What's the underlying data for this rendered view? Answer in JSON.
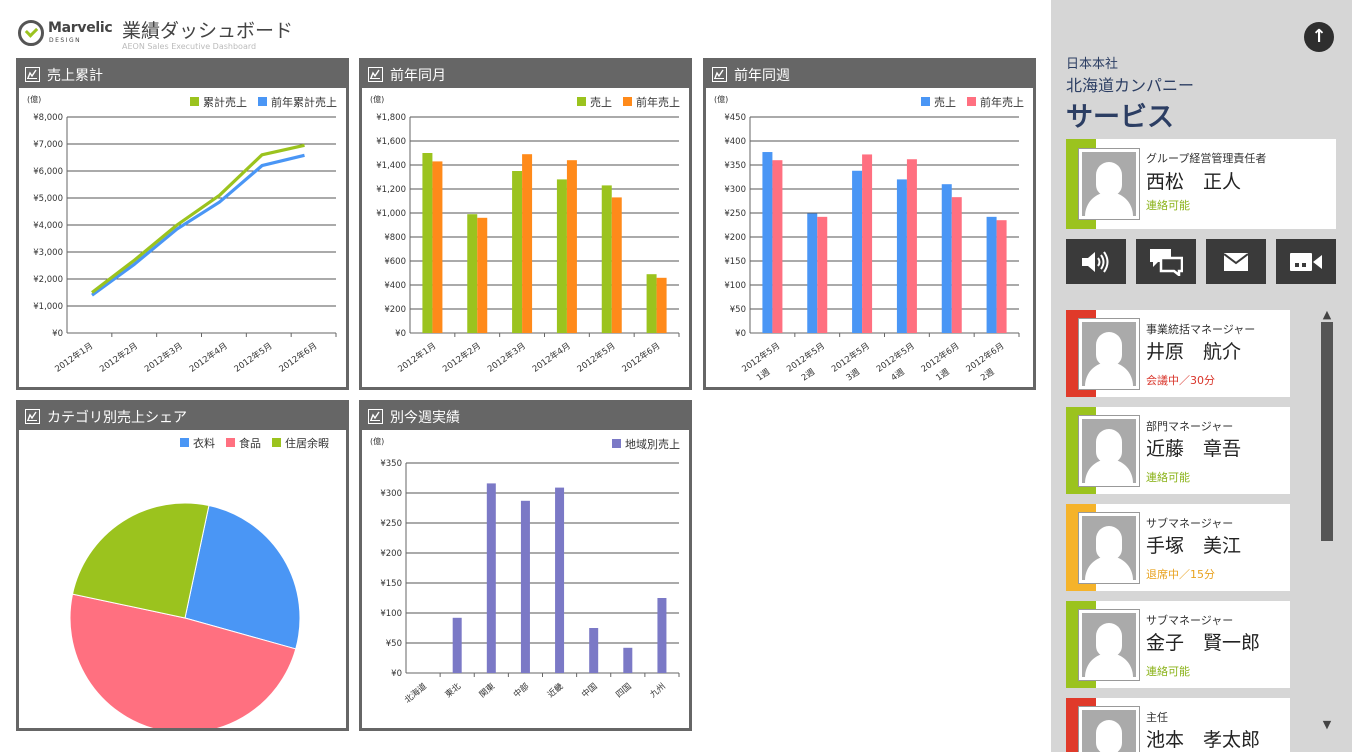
{
  "header": {
    "logo_text": "Marvelic",
    "logo_sub": "DESIGN",
    "title": "業績ダッシュボード",
    "subtitle": "AEON Sales Executive Dashboard"
  },
  "colors": {
    "green": "#9bc31e",
    "blue": "#4a96f5",
    "orange": "#ff8a1a",
    "pink": "#ff7080",
    "purple": "#7b79c6",
    "panel_gray": "#666666",
    "navy": "#2c3e63"
  },
  "panels": {
    "cumulative": {
      "title": "売上累計"
    },
    "month": {
      "title": "前年同月"
    },
    "week": {
      "title": "前年同週"
    },
    "category": {
      "title": "カテゴリ別売上シェア"
    },
    "region": {
      "title": "別今週実績"
    }
  },
  "chart_data": [
    {
      "type": "line",
      "panel": "売上累計",
      "unit_label": "(億)",
      "categories": [
        "2012年1月",
        "2012年2月",
        "2012年3月",
        "2012年4月",
        "2012年5月",
        "2012年6月"
      ],
      "yticks": [
        "¥0",
        "¥1,000",
        "¥2,000",
        "¥3,000",
        "¥4,000",
        "¥5,000",
        "¥6,000",
        "¥7,000",
        "¥8,000"
      ],
      "ylim": [
        0,
        8000
      ],
      "grid": true,
      "legend_position": "top-right",
      "series": [
        {
          "name": "累計売上",
          "color": "#9bc31e",
          "values": [
            1500,
            2700,
            4000,
            5100,
            6600,
            6950
          ]
        },
        {
          "name": "前年累計売上",
          "color": "#4a96f5",
          "values": [
            1400,
            2550,
            3850,
            4850,
            6200,
            6580
          ]
        }
      ]
    },
    {
      "type": "bar",
      "panel": "前年同月",
      "unit_label": "(億)",
      "categories": [
        "2012年1月",
        "2012年2月",
        "2012年3月",
        "2012年4月",
        "2012年5月",
        "2012年6月"
      ],
      "yticks": [
        "¥0",
        "¥200",
        "¥400",
        "¥600",
        "¥800",
        "¥1,000",
        "¥1,200",
        "¥1,400",
        "¥1,600",
        "¥1,800"
      ],
      "ylim": [
        0,
        1800
      ],
      "grid": true,
      "legend_position": "top-right",
      "series": [
        {
          "name": "売上",
          "color": "#9bc31e",
          "values": [
            1500,
            990,
            1350,
            1280,
            1230,
            490
          ]
        },
        {
          "name": "前年売上",
          "color": "#ff8a1a",
          "values": [
            1430,
            960,
            1490,
            1440,
            1130,
            460
          ]
        }
      ]
    },
    {
      "type": "bar",
      "panel": "前年同週",
      "unit_label": "(億)",
      "categories": [
        [
          "2012年5月",
          "1週"
        ],
        [
          "2012年5月",
          "2週"
        ],
        [
          "2012年5月",
          "3週"
        ],
        [
          "2012年5月",
          "4週"
        ],
        [
          "2012年6月",
          "1週"
        ],
        [
          "2012年6月",
          "2週"
        ]
      ],
      "yticks": [
        "¥0",
        "¥50",
        "¥100",
        "¥150",
        "¥200",
        "¥250",
        "¥300",
        "¥350",
        "¥400",
        "¥450"
      ],
      "ylim": [
        0,
        450
      ],
      "grid": true,
      "legend_position": "top-right",
      "series": [
        {
          "name": "売上",
          "color": "#4a96f5",
          "values": [
            377,
            249,
            338,
            320,
            310,
            242
          ]
        },
        {
          "name": "前年売上",
          "color": "#ff7080",
          "values": [
            360,
            242,
            372,
            362,
            283,
            235
          ]
        }
      ]
    },
    {
      "type": "pie",
      "panel": "カテゴリ別売上シェア",
      "legend_position": "top-right",
      "slices": [
        {
          "name": "衣料",
          "color": "#4a96f5",
          "value": 26
        },
        {
          "name": "食品",
          "color": "#ff7080",
          "value": 49
        },
        {
          "name": "住居余暇",
          "color": "#9bc31e",
          "value": 25
        }
      ]
    },
    {
      "type": "bar",
      "panel": "別今週実績",
      "unit_label": "(億)",
      "categories": [
        "北海道",
        "東北",
        "関東",
        "中部",
        "近畿",
        "中国",
        "四国",
        "九州"
      ],
      "yticks": [
        "¥0",
        "¥50",
        "¥100",
        "¥150",
        "¥200",
        "¥250",
        "¥300",
        "¥350"
      ],
      "ylim": [
        0,
        350
      ],
      "grid": true,
      "legend_position": "top-right",
      "series": [
        {
          "name": "地域別売上",
          "color": "#7b79c6",
          "values": [
            0,
            92,
            316,
            287,
            309,
            75,
            42,
            125
          ]
        }
      ]
    }
  ],
  "sidebar": {
    "org_line1": "日本本社",
    "org_line2": "北海道カンパニー",
    "org_line3": "サービス",
    "manager": {
      "role": "グループ経営管理責任者",
      "name": "西松　正人",
      "status": "連絡可能",
      "stripe_color": "#9bc31e",
      "status_color": "#8bb31a"
    },
    "actions": [
      {
        "name": "speaker-icon",
        "label": "音声"
      },
      {
        "name": "chat-icon",
        "label": "チャット"
      },
      {
        "name": "mail-icon",
        "label": "メール"
      },
      {
        "name": "video-icon",
        "label": "ビデオ"
      }
    ],
    "people": [
      {
        "role": "事業統括マネージャー",
        "name": "井原　航介",
        "status": "会議中／30分",
        "stripe_color": "#e03a2a",
        "status_color": "#d9342a"
      },
      {
        "role": "部門マネージャー",
        "name": "近藤　章吾",
        "status": "連絡可能",
        "stripe_color": "#9bc31e",
        "status_color": "#8bb31a"
      },
      {
        "role": "サブマネージャー",
        "name": "手塚　美江",
        "status": "退席中／15分",
        "stripe_color": "#f5b32a",
        "status_color": "#e8a21f"
      },
      {
        "role": "サブマネージャー",
        "name": "金子　賢一郎",
        "status": "連絡可能",
        "stripe_color": "#9bc31e",
        "status_color": "#8bb31a"
      },
      {
        "role": "主任",
        "name": "池本　孝太郎",
        "status": "",
        "stripe_color": "#e03a2a",
        "status_color": "#d9342a"
      }
    ]
  }
}
